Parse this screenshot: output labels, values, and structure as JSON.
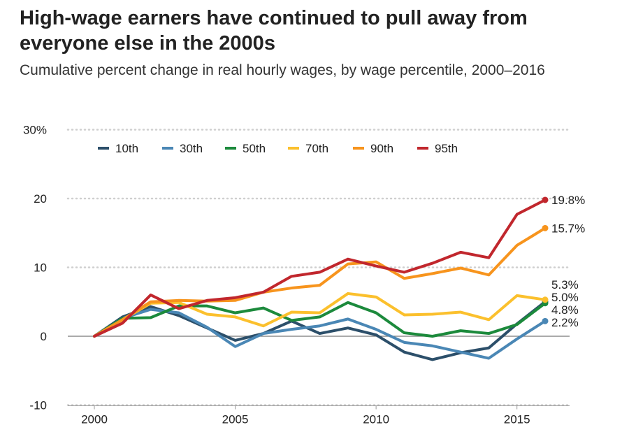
{
  "title": "High-wage earners have continued to pull away from everyone else in the 2000s",
  "subtitle": "Cumulative percent change in real hourly wages, by wage percentile, 2000–2016",
  "chart_data": {
    "type": "line",
    "x": [
      2000,
      2001,
      2002,
      2003,
      2004,
      2005,
      2006,
      2007,
      2008,
      2009,
      2010,
      2011,
      2012,
      2013,
      2014,
      2015,
      2016
    ],
    "xlim": [
      1999,
      2017
    ],
    "ylim": [
      -10,
      30
    ],
    "xticks": [
      2000,
      2005,
      2010,
      2015
    ],
    "xtick_labels": [
      "2000",
      "2005",
      "2010",
      "2015"
    ],
    "yticks": [
      -10,
      0,
      10,
      20,
      30
    ],
    "ytick_labels": [
      "-10",
      "0",
      "10",
      "20",
      "30%"
    ],
    "grid": "horizontal dotted",
    "legend": "top-left",
    "series": [
      {
        "name": "10th",
        "color": "#2c4f6a",
        "values": [
          0,
          2.8,
          4.3,
          3.0,
          1.2,
          -0.6,
          0.4,
          2.2,
          0.4,
          1.2,
          0.2,
          -2.3,
          -3.4,
          -2.4,
          -1.7,
          1.8,
          5.0
        ],
        "end_label": "5.0%"
      },
      {
        "name": "30th",
        "color": "#4a87b5",
        "values": [
          0,
          2.6,
          3.9,
          3.4,
          1.3,
          -1.5,
          0.4,
          1.0,
          1.5,
          2.5,
          1.0,
          -0.9,
          -1.4,
          -2.3,
          -3.2,
          -0.4,
          2.2
        ],
        "end_label": "2.2%"
      },
      {
        "name": "50th",
        "color": "#1c8a3c",
        "values": [
          0,
          2.6,
          2.7,
          4.4,
          4.4,
          3.4,
          4.1,
          2.3,
          2.8,
          4.9,
          3.4,
          0.5,
          0.0,
          0.8,
          0.4,
          1.7,
          4.8
        ],
        "end_label": "4.8%"
      },
      {
        "name": "70th",
        "color": "#fbc02d",
        "values": [
          0,
          2.4,
          4.8,
          4.9,
          3.2,
          2.8,
          1.5,
          3.5,
          3.4,
          6.2,
          5.7,
          3.1,
          3.2,
          3.5,
          2.4,
          5.9,
          5.3
        ],
        "end_label": "5.3%"
      },
      {
        "name": "90th",
        "color": "#f7941d",
        "values": [
          0,
          2.4,
          5.0,
          5.2,
          5.1,
          5.2,
          6.4,
          7.0,
          7.4,
          10.5,
          10.8,
          8.4,
          9.1,
          9.9,
          8.9,
          13.2,
          15.7
        ],
        "end_label": "15.7%"
      },
      {
        "name": "95th",
        "color": "#c1272d",
        "values": [
          0,
          1.9,
          6.0,
          4.0,
          5.2,
          5.6,
          6.4,
          8.7,
          9.3,
          11.2,
          10.2,
          9.3,
          10.6,
          12.2,
          11.4,
          17.7,
          19.8
        ],
        "end_label": "19.8%"
      }
    ]
  }
}
